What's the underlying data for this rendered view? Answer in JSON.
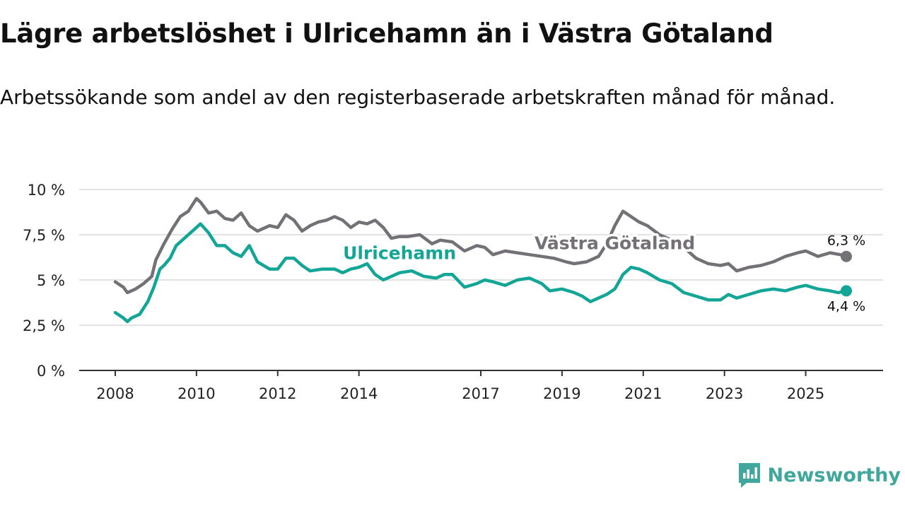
{
  "chart_data": {
    "type": "line",
    "title": "Lägre arbetslöshet i Ulricehamn än i Västra Götaland",
    "subtitle": "Arbetssökande som andel av den registerbaserade arbetskraften månad för månad.",
    "ylim": [
      0,
      10
    ],
    "xlim": [
      2008,
      2026.1
    ],
    "y_ticks": [
      0,
      2.5,
      5,
      7.5,
      10
    ],
    "y_tick_labels": [
      "0 %",
      "2,5 %",
      "5 %",
      "7,5 %",
      "10 %"
    ],
    "x_ticks": [
      2008,
      2010,
      2012,
      2014,
      2017,
      2019,
      2021,
      2023,
      2025
    ],
    "x_tick_labels": [
      "2008",
      "2010",
      "2012",
      "2014",
      "2017",
      "2019",
      "2021",
      "2023",
      "2025"
    ],
    "grid": true,
    "series": [
      {
        "name": "Västra Götaland",
        "color": "#737076",
        "end_label": "6,3 %",
        "x": [
          2008.0,
          2008.2,
          2008.3,
          2008.5,
          2008.7,
          2008.9,
          2009.0,
          2009.2,
          2009.4,
          2009.6,
          2009.8,
          2010.0,
          2010.1,
          2010.3,
          2010.5,
          2010.7,
          2010.9,
          2011.1,
          2011.3,
          2011.5,
          2011.8,
          2012.0,
          2012.2,
          2012.4,
          2012.6,
          2012.8,
          2013.0,
          2013.2,
          2013.4,
          2013.6,
          2013.8,
          2014.0,
          2014.2,
          2014.4,
          2014.6,
          2014.8,
          2015.0,
          2015.2,
          2015.5,
          2015.8,
          2016.0,
          2016.3,
          2016.6,
          2016.9,
          2017.1,
          2017.3,
          2017.6,
          2017.9,
          2018.2,
          2018.5,
          2018.8,
          2019.1,
          2019.3,
          2019.6,
          2019.9,
          2020.1,
          2020.3,
          2020.5,
          2020.7,
          2020.9,
          2021.1,
          2021.4,
          2021.7,
          2022.0,
          2022.3,
          2022.6,
          2022.9,
          2023.1,
          2023.3,
          2023.6,
          2023.9,
          2024.2,
          2024.5,
          2024.8,
          2025.0,
          2025.3,
          2025.6,
          2025.85,
          2026.0
        ],
        "values": [
          4.9,
          4.6,
          4.3,
          4.5,
          4.8,
          5.2,
          6.1,
          7.0,
          7.8,
          8.5,
          8.8,
          9.5,
          9.3,
          8.7,
          8.8,
          8.4,
          8.3,
          8.7,
          8.0,
          7.7,
          8.0,
          7.9,
          8.6,
          8.3,
          7.7,
          8.0,
          8.2,
          8.3,
          8.5,
          8.3,
          7.9,
          8.2,
          8.1,
          8.3,
          7.9,
          7.3,
          7.4,
          7.4,
          7.5,
          7.0,
          7.2,
          7.1,
          6.6,
          6.9,
          6.8,
          6.4,
          6.6,
          6.5,
          6.4,
          6.3,
          6.2,
          6.0,
          5.9,
          6.0,
          6.3,
          7.0,
          8.0,
          8.8,
          8.5,
          8.2,
          8.0,
          7.5,
          7.2,
          6.8,
          6.2,
          5.9,
          5.8,
          5.9,
          5.5,
          5.7,
          5.8,
          6.0,
          6.3,
          6.5,
          6.6,
          6.3,
          6.5,
          6.4,
          6.3
        ]
      },
      {
        "name": "Ulricehamn",
        "color": "#13a596",
        "end_label": "4,4 %",
        "x": [
          2008.0,
          2008.2,
          2008.3,
          2008.4,
          2008.6,
          2008.8,
          2008.95,
          2009.1,
          2009.2,
          2009.35,
          2009.5,
          2009.7,
          2009.9,
          2010.1,
          2010.3,
          2010.5,
          2010.7,
          2010.9,
          2011.1,
          2011.3,
          2011.5,
          2011.8,
          2012.0,
          2012.2,
          2012.4,
          2012.6,
          2012.8,
          2013.1,
          2013.4,
          2013.6,
          2013.8,
          2014.0,
          2014.2,
          2014.4,
          2014.6,
          2014.8,
          2015.0,
          2015.3,
          2015.6,
          2015.9,
          2016.1,
          2016.3,
          2016.6,
          2016.9,
          2017.1,
          2017.3,
          2017.6,
          2017.9,
          2018.2,
          2018.5,
          2018.7,
          2019.0,
          2019.3,
          2019.5,
          2019.7,
          2019.9,
          2020.1,
          2020.3,
          2020.5,
          2020.7,
          2020.9,
          2021.1,
          2021.4,
          2021.7,
          2022.0,
          2022.3,
          2022.6,
          2022.9,
          2023.1,
          2023.3,
          2023.6,
          2023.9,
          2024.2,
          2024.5,
          2024.8,
          2025.0,
          2025.3,
          2025.6,
          2025.8,
          2026.0
        ],
        "values": [
          3.2,
          2.9,
          2.7,
          2.9,
          3.1,
          3.8,
          4.6,
          5.6,
          5.8,
          6.2,
          6.9,
          7.3,
          7.7,
          8.1,
          7.6,
          6.9,
          6.9,
          6.5,
          6.3,
          6.9,
          6.0,
          5.6,
          5.6,
          6.2,
          6.2,
          5.8,
          5.5,
          5.6,
          5.6,
          5.4,
          5.6,
          5.7,
          5.9,
          5.3,
          5.0,
          5.2,
          5.4,
          5.5,
          5.2,
          5.1,
          5.3,
          5.3,
          4.6,
          4.8,
          5.0,
          4.9,
          4.7,
          5.0,
          5.1,
          4.8,
          4.4,
          4.5,
          4.3,
          4.1,
          3.8,
          4.0,
          4.2,
          4.5,
          5.3,
          5.7,
          5.6,
          5.4,
          5.0,
          4.8,
          4.3,
          4.1,
          3.9,
          3.9,
          4.2,
          4.0,
          4.2,
          4.4,
          4.5,
          4.4,
          4.6,
          4.7,
          4.5,
          4.4,
          4.3,
          4.4
        ]
      }
    ]
  },
  "brand": {
    "name": "Newsworthy",
    "icon": "newsworthy-logo-icon"
  }
}
